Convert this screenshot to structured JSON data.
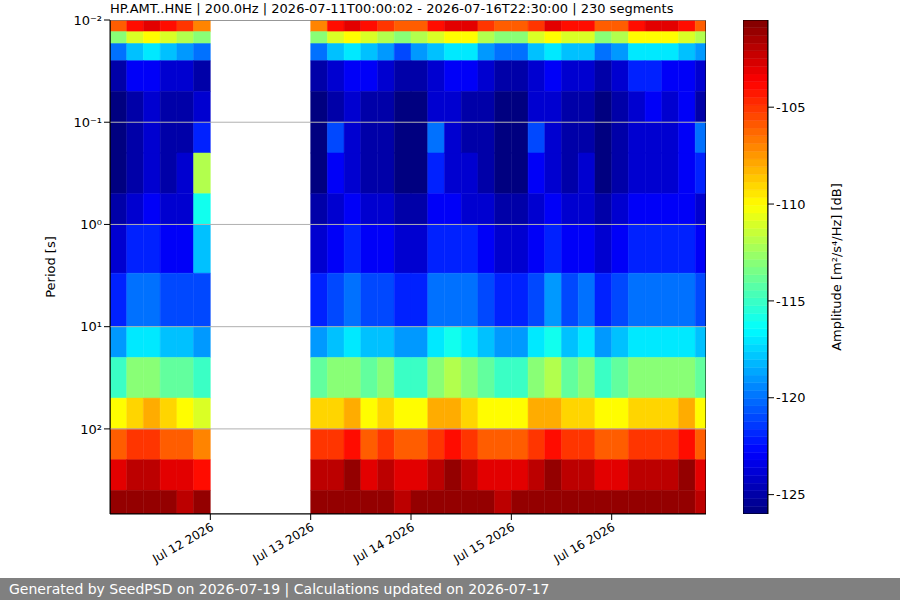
{
  "chart_data": {
    "type": "heatmap",
    "title": "HP.AMT..HNE | 200.0Hz | 2026-07-11T00:00:02 - 2026-07-16T22:30:00 | 230 segments",
    "y_label": "Period [s]",
    "log": "y",
    "grid": "y",
    "color": "jet",
    "xlim": [
      11,
      16.94
    ],
    "xticks": [
      {
        "value": 12,
        "label": "Jul 12 2026"
      },
      {
        "value": 13,
        "label": "Jul 13 2026"
      },
      {
        "value": 14,
        "label": "Jul 14 2026"
      },
      {
        "value": 15,
        "label": "Jul 15 2026"
      },
      {
        "value": 16,
        "label": "Jul 16 2026"
      }
    ],
    "ylim": [
      680,
      0.01
    ],
    "yticks": [
      {
        "value": 0.01,
        "label": "10⁻²"
      },
      {
        "value": 0.1,
        "label": "10⁻¹"
      },
      {
        "value": 1,
        "label": "10⁰"
      },
      {
        "value": 10,
        "label": "10¹"
      },
      {
        "value": 100,
        "label": "10²"
      }
    ],
    "x_edges": [
      11,
      11.167,
      11.333,
      11.5,
      11.667,
      11.833,
      12,
      12.167,
      12.333,
      12.5,
      12.667,
      12.833,
      13,
      13.167,
      13.333,
      13.5,
      13.667,
      13.833,
      14,
      14.167,
      14.333,
      14.5,
      14.667,
      14.833,
      15,
      15.167,
      15.333,
      15.5,
      15.667,
      15.833,
      16,
      16.167,
      16.333,
      16.5,
      16.667,
      16.833,
      16.94
    ],
    "y_edges": [
      0.01,
      0.013,
      0.017,
      0.025,
      0.05,
      0.1,
      0.2,
      0.5,
      1,
      3,
      10,
      20,
      50,
      100,
      200,
      400,
      680
    ],
    "z": [
      [
        -106,
        -104,
        -103,
        -104,
        -105,
        -107,
        null,
        null,
        null,
        null,
        null,
        null,
        -107,
        -104,
        -103,
        -104,
        -105,
        -106,
        -106,
        -104,
        -103,
        -103,
        -105,
        -106,
        -106,
        -105,
        -103,
        -104,
        -104,
        -106,
        -106,
        -104,
        -103,
        -103,
        -104,
        -106
      ],
      [
        -113,
        -111,
        -110,
        -111,
        -112,
        -113,
        null,
        null,
        null,
        null,
        null,
        null,
        -113,
        -111,
        -110,
        -111,
        -112,
        -113,
        -112,
        -111,
        -110,
        -110,
        -112,
        -113,
        -113,
        -111,
        -110,
        -111,
        -111,
        -113,
        -112,
        -110,
        -110,
        -110,
        -111,
        -112
      ],
      [
        -120,
        -118,
        -117,
        -118,
        -119,
        -120,
        null,
        null,
        null,
        null,
        null,
        null,
        -120,
        -118,
        -117,
        -118,
        -119,
        -121,
        -119,
        -118,
        -117,
        -117,
        -119,
        -120,
        -120,
        -118,
        -117,
        -118,
        -118,
        -120,
        -119,
        -117,
        -117,
        -117,
        -118,
        -119
      ],
      [
        -125,
        -123,
        -123,
        -124,
        -124,
        -125,
        null,
        null,
        null,
        null,
        null,
        null,
        -125,
        -124,
        -123,
        -123,
        -124,
        -125,
        -125,
        -124,
        -123,
        -123,
        -124,
        -125,
        -125,
        -124,
        -123,
        -124,
        -124,
        -125,
        -124,
        -122,
        -122,
        -123,
        -123,
        -124
      ],
      [
        -126,
        -125,
        -124,
        -125,
        -125,
        -124,
        null,
        null,
        null,
        null,
        null,
        null,
        -126,
        -125,
        -124,
        -125,
        -125,
        -126,
        -126,
        -124,
        -124,
        -125,
        -125,
        -126,
        -126,
        -124,
        -124,
        -125,
        -125,
        -126,
        -125,
        -124,
        -123,
        -124,
        -123,
        -125
      ],
      [
        -126,
        -125,
        -124,
        -125,
        -125,
        -122,
        null,
        null,
        null,
        null,
        null,
        null,
        -126,
        -121,
        -124,
        -125,
        -125,
        -126,
        -126,
        -120,
        -124,
        -125,
        -125,
        -126,
        -126,
        -121,
        -124,
        -125,
        -125,
        -126,
        -125,
        -124,
        -124,
        -124,
        -123,
        -120
      ],
      [
        -126,
        -125,
        -124,
        -125,
        -124,
        -112,
        null,
        null,
        null,
        null,
        null,
        null,
        -126,
        -123,
        -124,
        -125,
        -125,
        -126,
        -126,
        -122,
        -124,
        -124,
        -125,
        -126,
        -126,
        -123,
        -124,
        -125,
        -124,
        -126,
        -125,
        -124,
        -124,
        -124,
        -123,
        -122
      ],
      [
        -125,
        -124,
        -123,
        -124,
        -124,
        -116,
        null,
        null,
        null,
        null,
        null,
        null,
        -125,
        -124,
        -123,
        -124,
        -124,
        -125,
        -125,
        -123,
        -123,
        -124,
        -124,
        -125,
        -125,
        -124,
        -123,
        -124,
        -124,
        -125,
        -124,
        -123,
        -123,
        -123,
        -123,
        -124
      ],
      [
        -124,
        -122,
        -122,
        -123,
        -123,
        -118,
        null,
        null,
        null,
        null,
        null,
        null,
        -124,
        -123,
        -122,
        -123,
        -123,
        -124,
        -124,
        -122,
        -122,
        -122,
        -123,
        -124,
        -124,
        -123,
        -122,
        -123,
        -123,
        -124,
        -123,
        -122,
        -122,
        -122,
        -122,
        -123
      ],
      [
        -122,
        -120,
        -120,
        -121,
        -121,
        -121,
        null,
        null,
        null,
        null,
        null,
        null,
        -122,
        -121,
        -120,
        -121,
        -121,
        -122,
        -122,
        -120,
        -120,
        -120,
        -121,
        -122,
        -122,
        -121,
        -119,
        -121,
        -120,
        -122,
        -121,
        -120,
        -120,
        -120,
        -120,
        -121
      ],
      [
        -119,
        -117,
        -117,
        -118,
        -118,
        -119,
        null,
        null,
        null,
        null,
        null,
        null,
        -119,
        -118,
        -117,
        -118,
        -118,
        -119,
        -119,
        -117,
        -116,
        -117,
        -118,
        -119,
        -119,
        -117,
        -116,
        -118,
        -117,
        -119,
        -118,
        -117,
        -117,
        -117,
        -117,
        -118
      ],
      [
        -115,
        -113,
        -113,
        -114,
        -114,
        -115,
        null,
        null,
        null,
        null,
        null,
        null,
        -114,
        -113,
        -113,
        -114,
        -113,
        -115,
        -115,
        -113,
        -112,
        -113,
        -114,
        -115,
        -115,
        -113,
        -112,
        -114,
        -113,
        -115,
        -114,
        -113,
        -113,
        -113,
        -113,
        -114
      ],
      [
        -110,
        -109,
        -108,
        -109,
        -110,
        -111,
        null,
        null,
        null,
        null,
        null,
        null,
        -109,
        -109,
        -108,
        -110,
        -109,
        -110,
        -110,
        -108,
        -108,
        -109,
        -110,
        -110,
        -110,
        -108,
        -108,
        -109,
        -109,
        -110,
        -110,
        -109,
        -109,
        -109,
        -108,
        -110
      ],
      [
        -106,
        -105,
        -105,
        -106,
        -106,
        -107,
        null,
        null,
        null,
        null,
        null,
        null,
        -105,
        -105,
        -104,
        -106,
        -105,
        -106,
        -106,
        -105,
        -104,
        -105,
        -106,
        -106,
        -106,
        -105,
        -104,
        -105,
        -105,
        -106,
        -106,
        -105,
        -105,
        -105,
        -104,
        -106
      ],
      [
        -103,
        -102,
        -102,
        -103,
        -103,
        -104,
        null,
        null,
        null,
        null,
        null,
        null,
        -102,
        -102,
        -101,
        -103,
        -102,
        -103,
        -103,
        -102,
        -101,
        -102,
        -103,
        -103,
        -103,
        -102,
        -101,
        -102,
        -102,
        -103,
        -103,
        -102,
        -102,
        -102,
        -101,
        -103
      ],
      [
        -101,
        -101,
        -101,
        -101,
        -102,
        -101,
        null,
        null,
        null,
        null,
        null,
        null,
        -101,
        -101,
        -101,
        -101,
        -101,
        -102,
        -101,
        -101,
        -101,
        -101,
        -101,
        -102,
        -101,
        -101,
        -101,
        -101,
        -101,
        -101,
        -101,
        -101,
        -101,
        -101,
        -101,
        -102
      ]
    ],
    "colorbar": {
      "label": "Amplitude [m²/s⁴/Hz] [dB]",
      "range": [
        -126,
        -100.5
      ],
      "ticks": [
        -125,
        -120,
        -115,
        -110,
        -105
      ]
    }
  },
  "footer": "Generated by SeedPSD on 2026-07-19 | Calculations updated on 2026-07-17"
}
